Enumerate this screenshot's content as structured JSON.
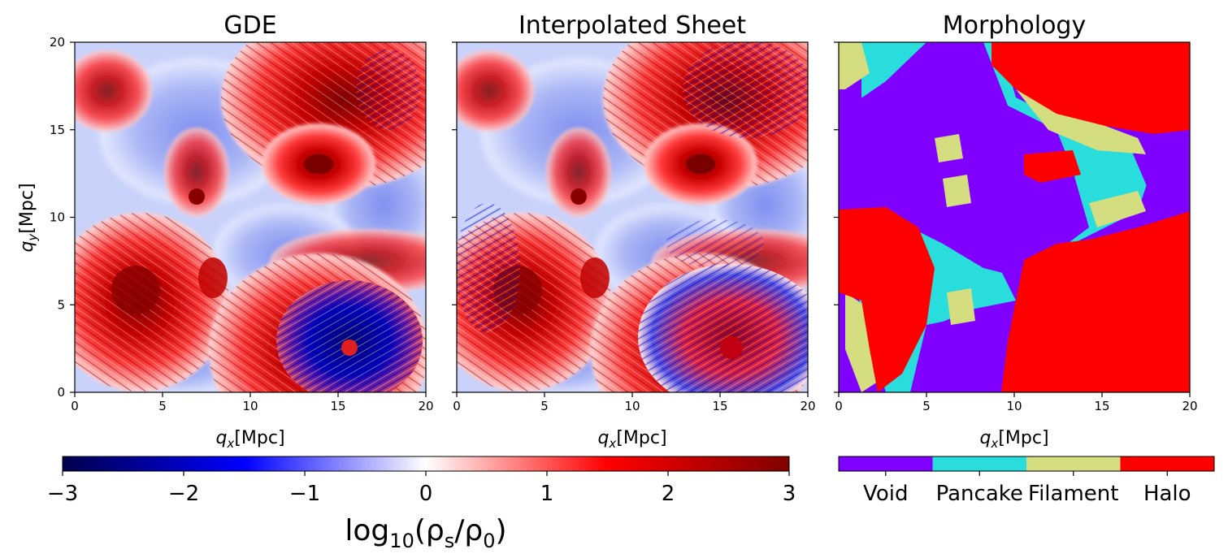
{
  "chart_data": [
    {
      "type": "heatmap",
      "title": "GDE",
      "xlabel": "q_x[Mpc]",
      "ylabel": "q_y[Mpc]",
      "xlim": [
        0,
        20
      ],
      "ylim": [
        0,
        20
      ],
      "xticks": [
        0,
        5,
        10,
        15,
        20
      ],
      "yticks": [
        0,
        5,
        10,
        15,
        20
      ],
      "colormap": "seismic",
      "grid": false
    },
    {
      "type": "heatmap",
      "title": "Interpolated Sheet",
      "xlabel": "q_x[Mpc]",
      "ylabel": "",
      "xlim": [
        0,
        20
      ],
      "ylim": [
        0,
        20
      ],
      "xticks": [
        0,
        5,
        10,
        15,
        20
      ],
      "yticks": [
        0,
        5,
        10,
        15,
        20
      ],
      "colormap": "seismic",
      "grid": false
    },
    {
      "type": "heatmap",
      "title": "Morphology",
      "xlabel": "q_x[Mpc]",
      "ylabel": "",
      "xlim": [
        0,
        20
      ],
      "ylim": [
        0,
        20
      ],
      "xticks": [
        0,
        5,
        10,
        15,
        20
      ],
      "yticks": [
        0,
        5,
        10,
        15,
        20
      ],
      "categories": [
        "Void",
        "Pancake",
        "Filament",
        "Halo"
      ],
      "category_colors": [
        "#7f00ff",
        "#2adddd",
        "#d4dd80",
        "#ff0000"
      ],
      "grid": false
    }
  ],
  "colorbar": {
    "label_main": "log",
    "label_sub": "10",
    "label_rest": "(ρ",
    "label_s": "s",
    "label_mid": "/ρ",
    "label_0": "0",
    "label_end": ")",
    "ticks": [
      "−3",
      "−2",
      "−1",
      "0",
      "1",
      "2",
      "3"
    ],
    "range": [
      -3,
      3
    ],
    "colors": [
      "#00004c",
      "#0000ff",
      "#ffffff",
      "#ff0000",
      "#800000"
    ]
  },
  "axis_text": {
    "x_main": "q",
    "x_sub": "x",
    "x_unit": "[Mpc]",
    "y_main": "q",
    "y_sub": "y",
    "y_unit": "[Mpc]"
  }
}
